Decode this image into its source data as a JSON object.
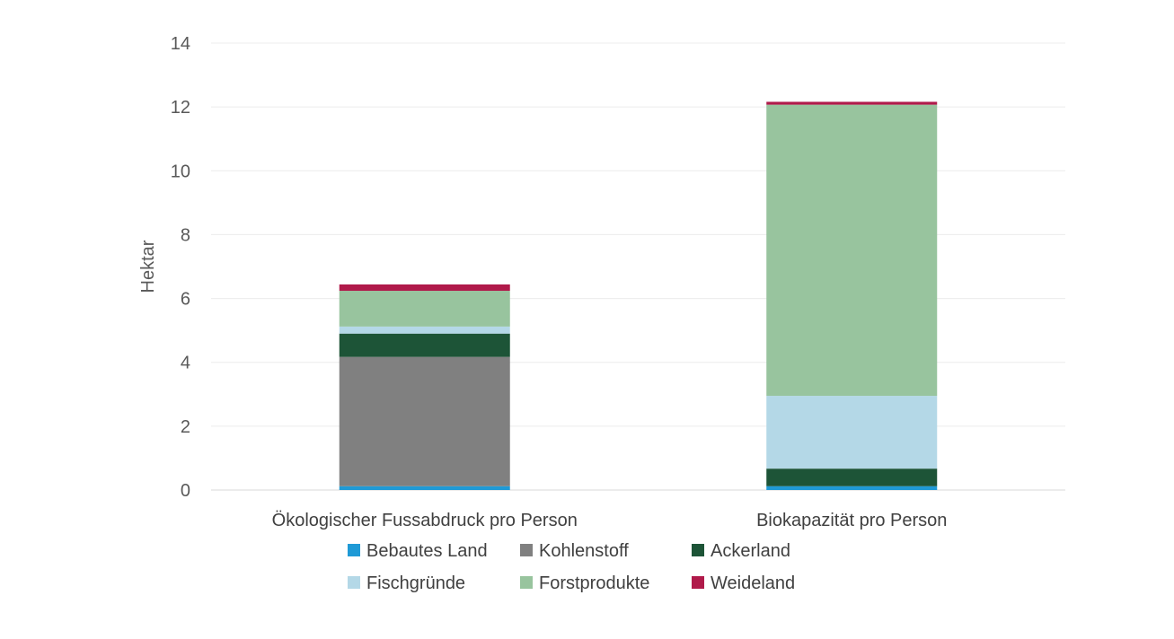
{
  "chart_data": {
    "type": "bar",
    "stacked": true,
    "title": "",
    "xlabel": "",
    "ylabel": "Hektar",
    "ylim": [
      0,
      14
    ],
    "yticks": [
      0,
      2,
      4,
      6,
      8,
      10,
      12,
      14
    ],
    "grid": true,
    "legend_position": "bottom",
    "categories": [
      "Ökologischer Fussabdruck pro Person",
      "Biokapazität pro Person"
    ],
    "series": [
      {
        "name": "Bebautes Land",
        "color": "#1f9ad6",
        "values": [
          0.12,
          0.12
        ]
      },
      {
        "name": "Kohlenstoff",
        "color": "#808080",
        "values": [
          4.05,
          0.0
        ]
      },
      {
        "name": "Ackerland",
        "color": "#1d5437",
        "values": [
          0.73,
          0.55
        ]
      },
      {
        "name": "Fischgründe",
        "color": "#b4d8e7",
        "values": [
          0.22,
          2.28
        ]
      },
      {
        "name": "Forstprodukte",
        "color": "#98c49e",
        "values": [
          1.12,
          9.12
        ]
      },
      {
        "name": "Weideland",
        "color": "#b01a4a",
        "values": [
          0.2,
          0.09
        ]
      }
    ]
  }
}
